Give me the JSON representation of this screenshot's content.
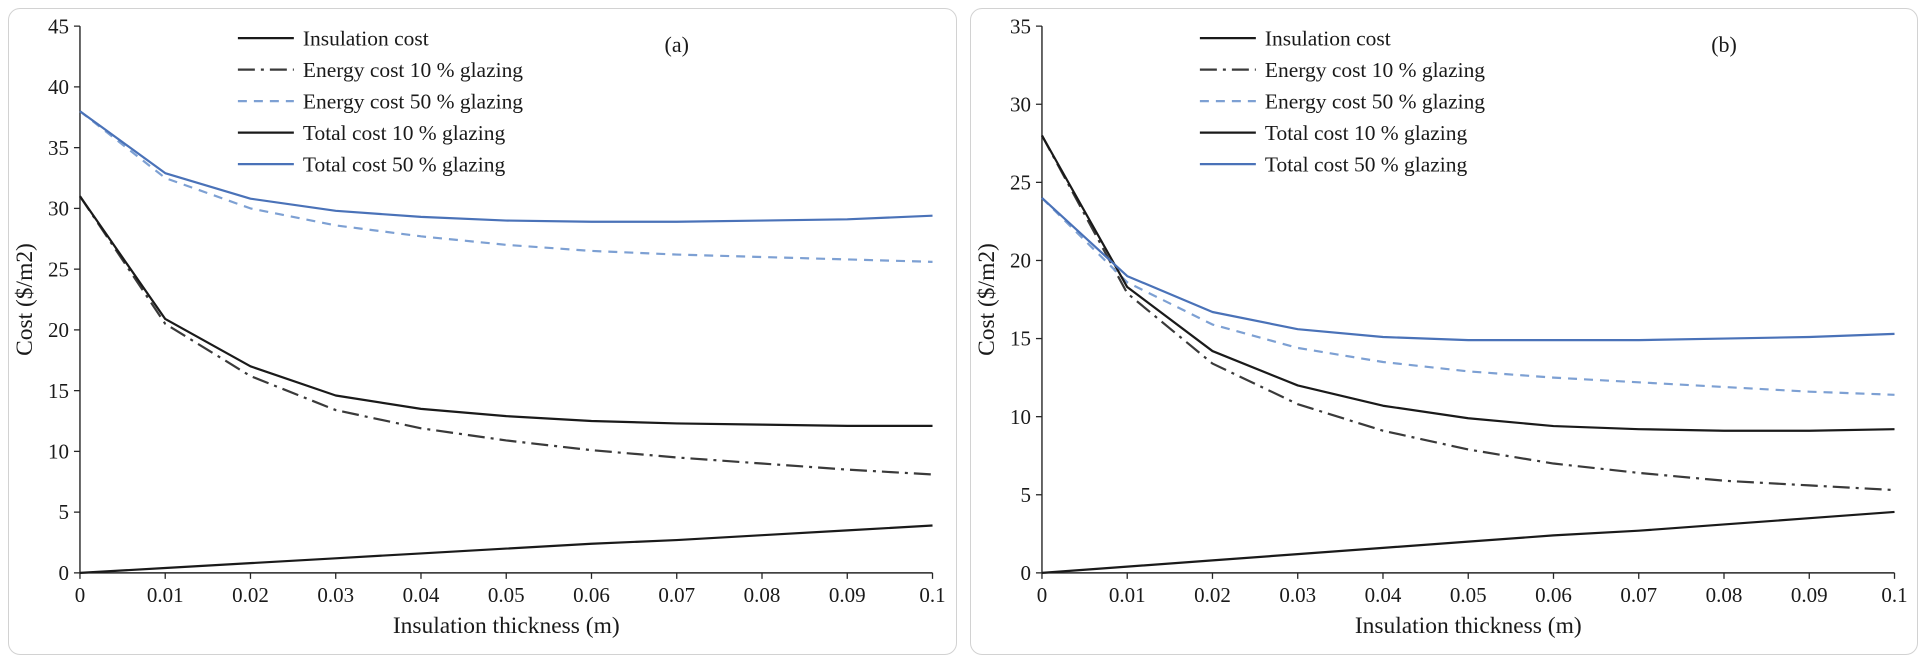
{
  "chart_data": [
    {
      "type": "line",
      "panel_label": "(a)",
      "panel_label_x_frac": 0.7,
      "title": "",
      "xlabel": "Insulation thickness (m)",
      "ylabel": "Cost ($/m2)",
      "xlim": [
        0,
        0.1
      ],
      "ylim": [
        0,
        45
      ],
      "ytick_step": 5,
      "grid": false,
      "legend": {
        "position": "top-left-inside",
        "x_offset": 158,
        "y_offset": 12
      },
      "x": [
        0,
        0.01,
        0.02,
        0.03,
        0.04,
        0.05,
        0.06,
        0.07,
        0.08,
        0.09,
        0.1
      ],
      "xticks": [
        0,
        0.01,
        0.02,
        0.03,
        0.04,
        0.05,
        0.06,
        0.07,
        0.08,
        0.09,
        0.1
      ],
      "xtick_labels": [
        "0",
        "0.01",
        "0.02",
        "0.03",
        "0.04",
        "0.05",
        "0.06",
        "0.07",
        "0.08",
        "0.09",
        "0.1"
      ],
      "series": [
        {
          "name": "Insulation cost",
          "color": "#1a1a1a",
          "dash": "solid",
          "values": [
            0,
            0.4,
            0.8,
            1.2,
            1.6,
            2.0,
            2.4,
            2.7,
            3.1,
            3.5,
            3.9
          ]
        },
        {
          "name": "Energy cost 10 % glazing",
          "color": "#3a3a3a",
          "dash": "dashdot",
          "values": [
            31,
            20.5,
            16.2,
            13.4,
            11.9,
            10.9,
            10.1,
            9.5,
            9.0,
            8.5,
            8.1
          ]
        },
        {
          "name": "Energy cost 50 % glazing",
          "color": "#7da0d3",
          "dash": "dash",
          "values": [
            38,
            32.5,
            30.0,
            28.6,
            27.7,
            27.0,
            26.5,
            26.2,
            26.0,
            25.8,
            25.6
          ]
        },
        {
          "name": "Total cost 10 % glazing",
          "color": "#1a1a1a",
          "dash": "solid",
          "values": [
            31,
            20.9,
            17.0,
            14.6,
            13.5,
            12.9,
            12.5,
            12.3,
            12.2,
            12.1,
            12.1
          ]
        },
        {
          "name": "Total cost 50 % glazing",
          "color": "#4a72b8",
          "dash": "solid",
          "values": [
            38,
            32.9,
            30.8,
            29.8,
            29.3,
            29.0,
            28.9,
            28.9,
            29.0,
            29.1,
            29.4
          ]
        }
      ]
    },
    {
      "type": "line",
      "panel_label": "(b)",
      "panel_label_x_frac": 0.8,
      "title": "",
      "xlabel": "Insulation thickness (m)",
      "ylabel": "Cost ($/m2)",
      "xlim": [
        0,
        0.1
      ],
      "ylim": [
        0,
        35
      ],
      "ytick_step": 5,
      "grid": false,
      "legend": {
        "position": "top-left-inside",
        "x_offset": 158,
        "y_offset": 12
      },
      "x": [
        0,
        0.01,
        0.02,
        0.03,
        0.04,
        0.05,
        0.06,
        0.07,
        0.08,
        0.09,
        0.1
      ],
      "xticks": [
        0,
        0.01,
        0.02,
        0.03,
        0.04,
        0.05,
        0.06,
        0.07,
        0.08,
        0.09,
        0.1
      ],
      "xtick_labels": [
        "0",
        "0.01",
        "0.02",
        "0.03",
        "0.04",
        "0.05",
        "0.06",
        "0.07",
        "0.08",
        "0.09",
        "0.1"
      ],
      "series": [
        {
          "name": "Insulation cost",
          "color": "#1a1a1a",
          "dash": "solid",
          "values": [
            0,
            0.4,
            0.8,
            1.2,
            1.6,
            2.0,
            2.4,
            2.7,
            3.1,
            3.5,
            3.9
          ]
        },
        {
          "name": "Energy cost 10 % glazing",
          "color": "#3a3a3a",
          "dash": "dashdot",
          "values": [
            28,
            17.9,
            13.4,
            10.8,
            9.1,
            7.9,
            7.0,
            6.4,
            5.9,
            5.6,
            5.3
          ]
        },
        {
          "name": "Energy cost 50 % glazing",
          "color": "#7da0d3",
          "dash": "dash",
          "values": [
            24,
            18.6,
            15.9,
            14.4,
            13.5,
            12.9,
            12.5,
            12.2,
            11.9,
            11.6,
            11.4
          ]
        },
        {
          "name": "Total cost 10 % glazing",
          "color": "#1a1a1a",
          "dash": "solid",
          "values": [
            28,
            18.3,
            14.2,
            12.0,
            10.7,
            9.9,
            9.4,
            9.2,
            9.1,
            9.1,
            9.2
          ]
        },
        {
          "name": "Total cost 50 % glazing",
          "color": "#4a72b8",
          "dash": "solid",
          "values": [
            24,
            19.0,
            16.7,
            15.6,
            15.1,
            14.9,
            14.9,
            14.9,
            15.0,
            15.1,
            15.3
          ]
        }
      ]
    }
  ]
}
